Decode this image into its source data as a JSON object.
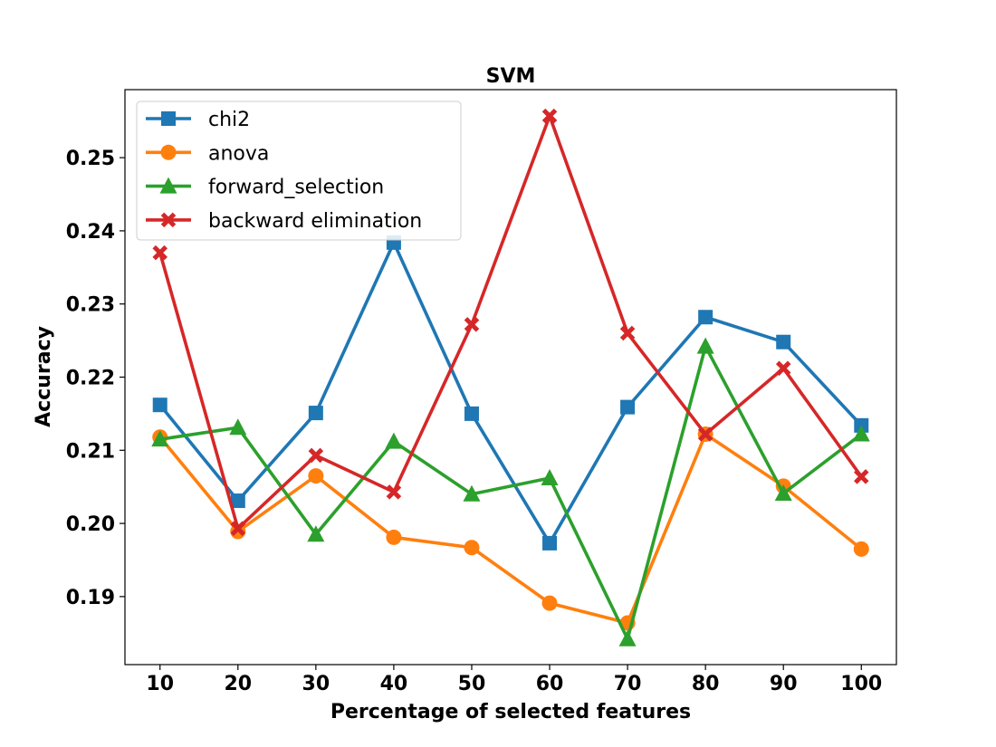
{
  "chart_data": {
    "type": "line",
    "title": "SVM",
    "xlabel": "Percentage of selected features",
    "ylabel": "Accuracy",
    "x": [
      10,
      20,
      30,
      40,
      50,
      60,
      70,
      80,
      90,
      100
    ],
    "xticks": [
      "10",
      "20",
      "30",
      "40",
      "50",
      "60",
      "70",
      "80",
      "90",
      "100"
    ],
    "yticks": [
      0.19,
      0.2,
      0.21,
      0.22,
      0.23,
      0.24,
      0.25
    ],
    "ytick_labels": [
      "0.19",
      "0.20",
      "0.21",
      "0.22",
      "0.23",
      "0.24",
      "0.25"
    ],
    "ylim": [
      0.1807,
      0.2593
    ],
    "xlim": [
      5.5,
      104.5
    ],
    "legend_position": "top-left",
    "series": [
      {
        "name": "chi2",
        "color": "#1f77b4",
        "marker": "square",
        "values": [
          0.2162,
          0.2031,
          0.2151,
          0.2384,
          0.215,
          0.1973,
          0.2159,
          0.2282,
          0.2248,
          0.2134
        ]
      },
      {
        "name": "anova",
        "color": "#ff7f0e",
        "marker": "circle",
        "values": [
          0.2118,
          0.1989,
          0.2065,
          0.1981,
          0.1967,
          0.1891,
          0.1864,
          0.2122,
          0.2051,
          0.1965
        ]
      },
      {
        "name": "forward_selection",
        "color": "#2ca02c",
        "marker": "triangle",
        "values": [
          0.2115,
          0.2131,
          0.1985,
          0.2112,
          0.204,
          0.2062,
          0.1842,
          0.2242,
          0.2041,
          0.2122
        ]
      },
      {
        "name": "backward elimination",
        "color": "#d62728",
        "marker": "x",
        "values": [
          0.237,
          0.1993,
          0.2093,
          0.2043,
          0.2272,
          0.2557,
          0.226,
          0.2122,
          0.2212,
          0.2064
        ]
      }
    ]
  }
}
